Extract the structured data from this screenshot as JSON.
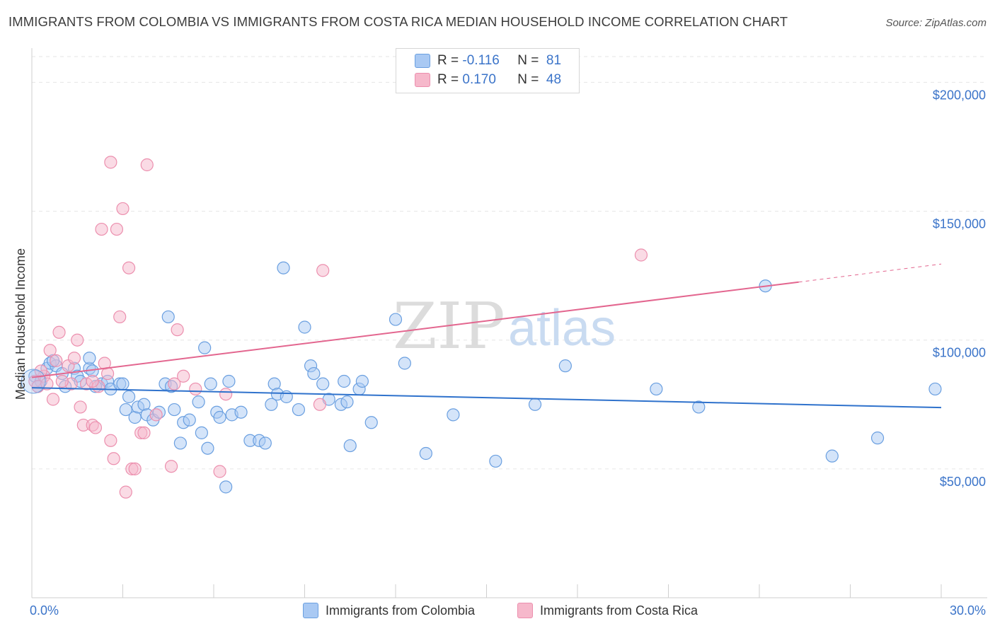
{
  "title": "IMMIGRANTS FROM COLOMBIA VS IMMIGRANTS FROM COSTA RICA MEDIAN HOUSEHOLD INCOME CORRELATION CHART",
  "source": "Source: ZipAtlas.com",
  "watermark": {
    "zip": "ZIP",
    "atlas": "atlas"
  },
  "legend": {
    "row1": {
      "r_label": "R =",
      "r_value": "-0.116",
      "n_label": "N =",
      "n_value": "81"
    },
    "row2": {
      "r_label": "R =",
      "r_value": "0.170",
      "n_label": "N =",
      "n_value": "48"
    }
  },
  "bottom_legend": {
    "series1": "Immigrants from Colombia",
    "series2": "Immigrants from Costa Rica"
  },
  "colors": {
    "blue_fill": "#a9c9f3",
    "blue_stroke": "#6a9fe0",
    "blue_line": "#2f72cc",
    "pink_fill": "#f6b8cb",
    "pink_stroke": "#ec8fae",
    "pink_line": "#e3668f",
    "tick_label": "#3b74c9",
    "grid": "#e6e6e6"
  },
  "chart_data": {
    "type": "scatter",
    "title": "IMMIGRANTS FROM COLOMBIA VS IMMIGRANTS FROM COSTA RICA MEDIAN HOUSEHOLD INCOME CORRELATION CHART",
    "xlabel": "",
    "ylabel": "Median Household Income",
    "xlim": [
      0,
      30
    ],
    "ylim": [
      0,
      210000
    ],
    "x_tick_labels": [
      "0.0%",
      "30.0%"
    ],
    "y_ticks": [
      50000,
      100000,
      150000,
      200000
    ],
    "y_tick_labels": [
      "$50,000",
      "$100,000",
      "$150,000",
      "$200,000"
    ],
    "grid": true,
    "legend_position": "top-center",
    "series": [
      {
        "name": "Immigrants from Colombia",
        "color": "#a9c9f3",
        "trend": {
          "x": [
            0,
            30
          ],
          "y": [
            81500,
            73800
          ]
        },
        "points": [
          [
            0.1,
            86000
          ],
          [
            0.2,
            82000
          ],
          [
            0.5,
            89000
          ],
          [
            0.6,
            91000
          ],
          [
            0.8,
            90000
          ],
          [
            1.0,
            87000
          ],
          [
            1.1,
            82000
          ],
          [
            1.4,
            89000
          ],
          [
            1.5,
            86000
          ],
          [
            1.6,
            84000
          ],
          [
            1.9,
            89000
          ],
          [
            2.0,
            88000
          ],
          [
            1.9,
            93000
          ],
          [
            2.3,
            83000
          ],
          [
            2.5,
            84000
          ],
          [
            2.6,
            81000
          ],
          [
            2.9,
            83000
          ],
          [
            3.1,
            73000
          ],
          [
            3.2,
            78000
          ],
          [
            3.4,
            70000
          ],
          [
            3.5,
            74000
          ],
          [
            3.7,
            75000
          ],
          [
            3.8,
            71000
          ],
          [
            4.0,
            69000
          ],
          [
            4.2,
            72000
          ],
          [
            4.4,
            83000
          ],
          [
            4.5,
            109000
          ],
          [
            4.6,
            82000
          ],
          [
            4.7,
            73000
          ],
          [
            4.9,
            60000
          ],
          [
            5.0,
            68000
          ],
          [
            5.2,
            69000
          ],
          [
            5.5,
            76000
          ],
          [
            5.6,
            64000
          ],
          [
            5.8,
            58000
          ],
          [
            5.7,
            97000
          ],
          [
            5.9,
            83000
          ],
          [
            6.1,
            72000
          ],
          [
            6.2,
            70000
          ],
          [
            6.4,
            43000
          ],
          [
            6.5,
            84000
          ],
          [
            6.6,
            71000
          ],
          [
            6.9,
            72000
          ],
          [
            7.2,
            61000
          ],
          [
            7.5,
            61000
          ],
          [
            7.7,
            60000
          ],
          [
            7.9,
            75000
          ],
          [
            8.0,
            83000
          ],
          [
            8.1,
            79000
          ],
          [
            8.3,
            128000
          ],
          [
            8.4,
            78000
          ],
          [
            8.8,
            73000
          ],
          [
            9.0,
            105000
          ],
          [
            9.2,
            90000
          ],
          [
            9.3,
            87000
          ],
          [
            9.6,
            83000
          ],
          [
            9.8,
            77000
          ],
          [
            10.2,
            75000
          ],
          [
            10.3,
            84000
          ],
          [
            10.4,
            76000
          ],
          [
            10.5,
            59000
          ],
          [
            10.8,
            81000
          ],
          [
            10.9,
            84000
          ],
          [
            11.2,
            68000
          ],
          [
            12.0,
            108000
          ],
          [
            12.3,
            91000
          ],
          [
            13.0,
            56000
          ],
          [
            13.9,
            71000
          ],
          [
            15.3,
            53000
          ],
          [
            16.6,
            75000
          ],
          [
            17.6,
            90000
          ],
          [
            20.6,
            81000
          ],
          [
            22.0,
            74000
          ],
          [
            24.2,
            121000
          ],
          [
            26.4,
            55000
          ],
          [
            27.9,
            62000
          ],
          [
            29.8,
            81000
          ],
          [
            0.3,
            84000
          ],
          [
            0.7,
            92000
          ],
          [
            2.1,
            82000
          ],
          [
            3.0,
            83000
          ]
        ]
      },
      {
        "name": "Immigrants from Costa Rica",
        "color": "#f6b8cb",
        "trend": {
          "x": [
            0,
            25.3
          ],
          "y": [
            85500,
            122500
          ]
        },
        "trend_dashed": {
          "x": [
            25.3,
            30
          ],
          "y": [
            122500,
            129500
          ]
        },
        "points": [
          [
            0.1,
            84000
          ],
          [
            0.2,
            82000
          ],
          [
            0.4,
            86000
          ],
          [
            0.6,
            96000
          ],
          [
            0.7,
            77000
          ],
          [
            0.8,
            92000
          ],
          [
            0.9,
            103000
          ],
          [
            1.2,
            90000
          ],
          [
            1.3,
            83000
          ],
          [
            1.4,
            93000
          ],
          [
            1.5,
            100000
          ],
          [
            1.6,
            74000
          ],
          [
            1.8,
            83000
          ],
          [
            1.7,
            67000
          ],
          [
            2.0,
            67000
          ],
          [
            2.1,
            66000
          ],
          [
            2.2,
            82000
          ],
          [
            2.3,
            143000
          ],
          [
            2.4,
            91000
          ],
          [
            2.5,
            87000
          ],
          [
            2.6,
            61000
          ],
          [
            2.6,
            169000
          ],
          [
            2.7,
            54000
          ],
          [
            2.8,
            143000
          ],
          [
            2.9,
            109000
          ],
          [
            3.0,
            151000
          ],
          [
            3.1,
            41000
          ],
          [
            3.2,
            128000
          ],
          [
            3.3,
            50000
          ],
          [
            3.4,
            50000
          ],
          [
            3.6,
            64000
          ],
          [
            3.7,
            64000
          ],
          [
            3.8,
            168000
          ],
          [
            4.1,
            71000
          ],
          [
            4.6,
            51000
          ],
          [
            4.7,
            83000
          ],
          [
            4.8,
            104000
          ],
          [
            5.0,
            86000
          ],
          [
            5.4,
            81000
          ],
          [
            6.2,
            49000
          ],
          [
            6.4,
            79000
          ],
          [
            9.5,
            75000
          ],
          [
            9.6,
            127000
          ],
          [
            20.1,
            133000
          ],
          [
            0.3,
            88000
          ],
          [
            1.0,
            84000
          ],
          [
            2.0,
            84000
          ],
          [
            0.5,
            83000
          ]
        ]
      }
    ]
  }
}
